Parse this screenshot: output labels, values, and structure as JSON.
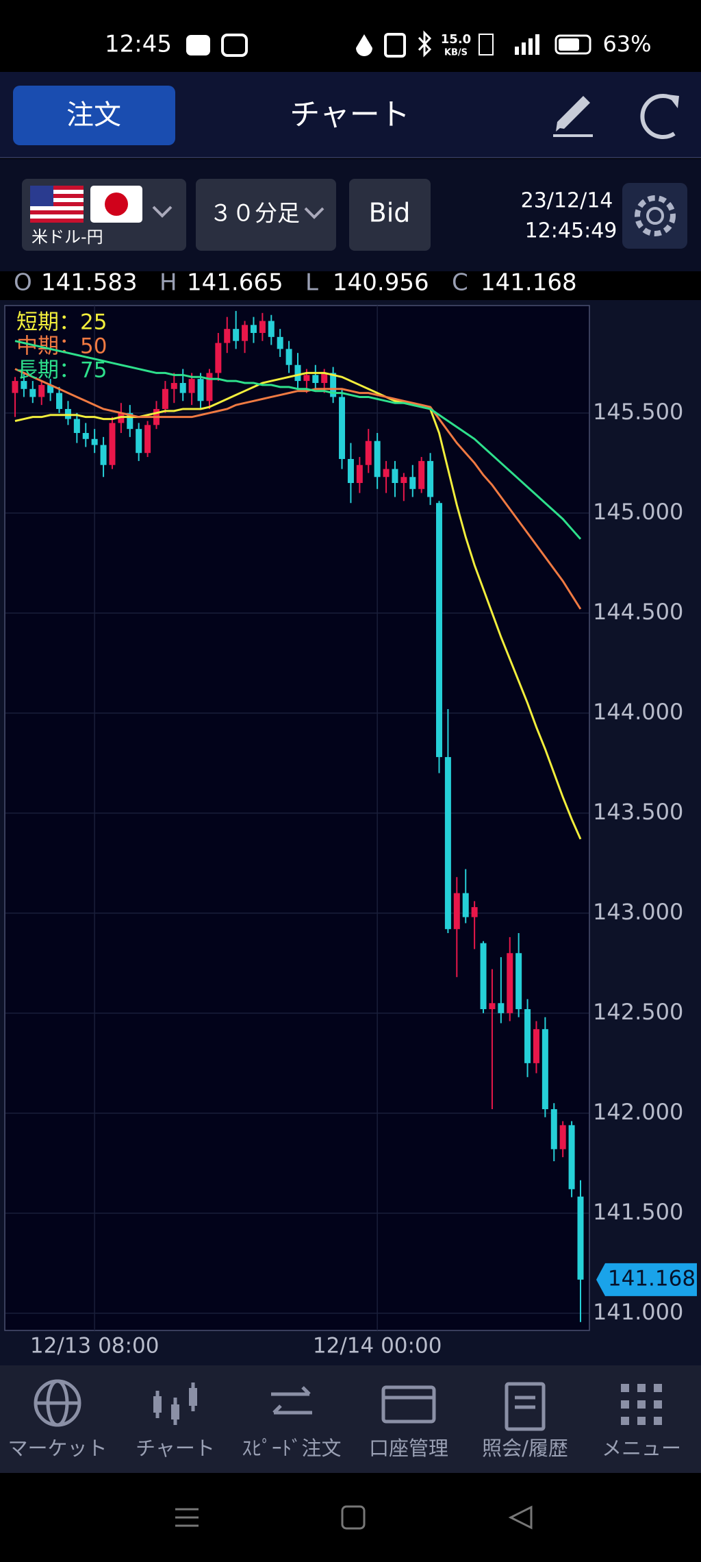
{
  "status_bar": {
    "time": "12:45",
    "net_speed": "15.0",
    "net_unit": "KB/S",
    "battery": "63%"
  },
  "header": {
    "order_button": "注文",
    "title": "チャート"
  },
  "toolbar": {
    "pair": "米ドル-円",
    "timeframe": "３０分足",
    "price_type": "Bid",
    "date": "23/12/14",
    "time": "12:45:49"
  },
  "ohlc": [
    {
      "key": "O",
      "value": "141.583"
    },
    {
      "key": "H",
      "value": "141.665"
    },
    {
      "key": "L",
      "value": "140.956"
    },
    {
      "key": "C",
      "value": "141.168"
    }
  ],
  "chart_data": {
    "type": "candlestick",
    "categories": [
      null,
      null,
      null,
      null,
      null,
      null,
      null,
      null,
      null,
      "12/13 08:00",
      null,
      null,
      null,
      null,
      null,
      null,
      null,
      null,
      null,
      null,
      null,
      null,
      null,
      null,
      null,
      null,
      null,
      null,
      null,
      null,
      null,
      null,
      null,
      null,
      null,
      null,
      null,
      null,
      null,
      null,
      null,
      "12/14 00:00",
      null,
      null,
      null,
      null,
      null,
      null,
      null,
      null,
      null,
      null,
      null,
      null,
      null,
      null,
      null,
      null,
      null,
      null,
      null,
      null,
      null,
      null,
      null
    ],
    "open": [
      145.6,
      145.66,
      145.62,
      145.58,
      145.64,
      145.6,
      145.52,
      145.47,
      145.4,
      145.37,
      145.34,
      145.24,
      145.45,
      145.5,
      145.42,
      145.3,
      145.44,
      145.52,
      145.62,
      145.65,
      145.6,
      145.67,
      145.56,
      145.7,
      145.85,
      145.92,
      145.86,
      145.94,
      145.9,
      145.96,
      145.88,
      145.82,
      145.74,
      145.66,
      145.69,
      145.65,
      145.7,
      145.58,
      145.27,
      145.15,
      145.24,
      145.36,
      145.18,
      145.22,
      145.15,
      145.18,
      145.12,
      145.26,
      145.05,
      143.78,
      142.92,
      143.1,
      142.98,
      142.85,
      142.52,
      142.55,
      142.5,
      142.8,
      142.52,
      142.25,
      142.42,
      142.02,
      141.82,
      141.94,
      141.583
    ],
    "high": [
      145.68,
      145.7,
      145.66,
      145.66,
      145.67,
      145.63,
      145.56,
      145.5,
      145.45,
      145.42,
      145.38,
      145.48,
      145.55,
      145.54,
      145.45,
      145.46,
      145.56,
      145.66,
      145.7,
      145.72,
      145.7,
      145.7,
      145.72,
      145.9,
      145.98,
      146.01,
      145.96,
      145.98,
      146.0,
      145.99,
      145.92,
      145.86,
      145.8,
      145.72,
      145.74,
      145.72,
      145.73,
      145.62,
      145.35,
      145.28,
      145.42,
      145.4,
      145.26,
      145.26,
      145.2,
      145.24,
      145.28,
      145.3,
      145.06,
      144.02,
      143.18,
      143.22,
      143.06,
      142.86,
      142.72,
      142.78,
      142.88,
      142.9,
      142.57,
      142.46,
      142.48,
      142.05,
      141.96,
      141.96,
      141.665
    ],
    "low": [
      145.48,
      145.58,
      145.55,
      145.54,
      145.56,
      145.5,
      145.44,
      145.35,
      145.33,
      145.3,
      145.18,
      145.22,
      145.4,
      145.38,
      145.26,
      145.28,
      145.42,
      145.5,
      145.55,
      145.56,
      145.54,
      145.52,
      145.52,
      145.66,
      145.8,
      145.82,
      145.8,
      145.85,
      145.86,
      145.84,
      145.78,
      145.7,
      145.62,
      145.6,
      145.62,
      145.6,
      145.55,
      145.22,
      145.05,
      145.1,
      145.2,
      145.12,
      145.1,
      145.08,
      145.06,
      145.08,
      145.1,
      145.04,
      143.7,
      142.9,
      142.68,
      142.95,
      142.82,
      142.5,
      142.02,
      142.45,
      142.46,
      142.48,
      142.18,
      142.2,
      141.98,
      141.76,
      141.78,
      141.58,
      140.956
    ],
    "close": [
      145.66,
      145.62,
      145.58,
      145.64,
      145.6,
      145.52,
      145.47,
      145.4,
      145.37,
      145.34,
      145.24,
      145.45,
      145.5,
      145.42,
      145.3,
      145.44,
      145.52,
      145.62,
      145.65,
      145.6,
      145.67,
      145.56,
      145.7,
      145.85,
      145.92,
      145.86,
      145.94,
      145.9,
      145.96,
      145.88,
      145.82,
      145.74,
      145.66,
      145.69,
      145.65,
      145.7,
      145.58,
      145.27,
      145.15,
      145.24,
      145.36,
      145.18,
      145.22,
      145.15,
      145.18,
      145.12,
      145.26,
      145.08,
      143.78,
      142.92,
      143.1,
      142.98,
      143.03,
      142.52,
      142.55,
      142.5,
      142.8,
      142.52,
      142.25,
      142.42,
      142.02,
      141.82,
      141.94,
      141.62,
      141.168
    ],
    "up_color": "#e8174a",
    "down_color": "#26d0d8",
    "series": [
      {
        "name": "短期：25",
        "color": "#f2ee3c",
        "values": [
          145.46,
          145.47,
          145.48,
          145.48,
          145.49,
          145.49,
          145.49,
          145.49,
          145.48,
          145.48,
          145.47,
          145.47,
          145.48,
          145.48,
          145.48,
          145.49,
          145.5,
          145.51,
          145.51,
          145.52,
          145.52,
          145.52,
          145.53,
          145.55,
          145.57,
          145.59,
          145.61,
          145.63,
          145.65,
          145.66,
          145.67,
          145.68,
          145.69,
          145.7,
          145.7,
          145.7,
          145.69,
          145.68,
          145.66,
          145.64,
          145.62,
          145.6,
          145.58,
          145.56,
          145.55,
          145.54,
          145.53,
          145.52,
          145.4,
          145.22,
          145.04,
          144.88,
          144.74,
          144.62,
          144.5,
          144.38,
          144.27,
          144.16,
          144.05,
          143.93,
          143.82,
          143.7,
          143.58,
          143.47,
          143.37
        ]
      },
      {
        "name": "中期：50",
        "color": "#f07a42",
        "values": [
          145.72,
          145.7,
          145.68,
          145.66,
          145.64,
          145.62,
          145.6,
          145.58,
          145.56,
          145.54,
          145.52,
          145.51,
          145.5,
          145.49,
          145.48,
          145.48,
          145.48,
          145.48,
          145.48,
          145.48,
          145.48,
          145.49,
          145.5,
          145.51,
          145.52,
          145.54,
          145.55,
          145.56,
          145.57,
          145.58,
          145.59,
          145.6,
          145.61,
          145.61,
          145.62,
          145.62,
          145.62,
          145.62,
          145.61,
          145.6,
          145.6,
          145.59,
          145.58,
          145.57,
          145.56,
          145.55,
          145.54,
          145.53,
          145.47,
          145.41,
          145.35,
          145.3,
          145.25,
          145.19,
          145.14,
          145.08,
          145.02,
          144.96,
          144.9,
          144.84,
          144.78,
          144.72,
          144.66,
          144.59,
          144.52
        ]
      },
      {
        "name": "長期：75",
        "color": "#2ee08c",
        "values": [
          145.86,
          145.85,
          145.84,
          145.83,
          145.82,
          145.81,
          145.8,
          145.79,
          145.78,
          145.77,
          145.76,
          145.75,
          145.74,
          145.73,
          145.72,
          145.71,
          145.7,
          145.7,
          145.69,
          145.69,
          145.68,
          145.68,
          145.67,
          145.67,
          145.66,
          145.66,
          145.65,
          145.65,
          145.64,
          145.64,
          145.63,
          145.63,
          145.62,
          145.62,
          145.61,
          145.61,
          145.6,
          145.6,
          145.59,
          145.58,
          145.58,
          145.57,
          145.56,
          145.55,
          145.55,
          145.54,
          145.53,
          145.52,
          145.49,
          145.46,
          145.43,
          145.4,
          145.37,
          145.33,
          145.29,
          145.25,
          145.21,
          145.17,
          145.13,
          145.09,
          145.05,
          145.01,
          144.97,
          144.92,
          144.87
        ]
      }
    ],
    "ylim": [
      140.914,
      146.037
    ],
    "yticks": [
      {
        "value": 145.5,
        "label": "145.500"
      },
      {
        "value": 145,
        "label": "145.000"
      },
      {
        "value": 144.5,
        "label": "144.500"
      },
      {
        "value": 144,
        "label": "144.000"
      },
      {
        "value": 143.5,
        "label": "143.500"
      },
      {
        "value": 143,
        "label": "143.000"
      },
      {
        "value": 142.5,
        "label": "142.500"
      },
      {
        "value": 142,
        "label": "142.000"
      },
      {
        "value": 141.5,
        "label": "141.500"
      },
      {
        "value": 141,
        "label": "141.000"
      }
    ],
    "grid": true
  },
  "nav": [
    "マーケット",
    "チャート",
    "ｽﾋﾟｰﾄﾞ注文",
    "口座管理",
    "照会/履歴",
    "メニュー"
  ]
}
